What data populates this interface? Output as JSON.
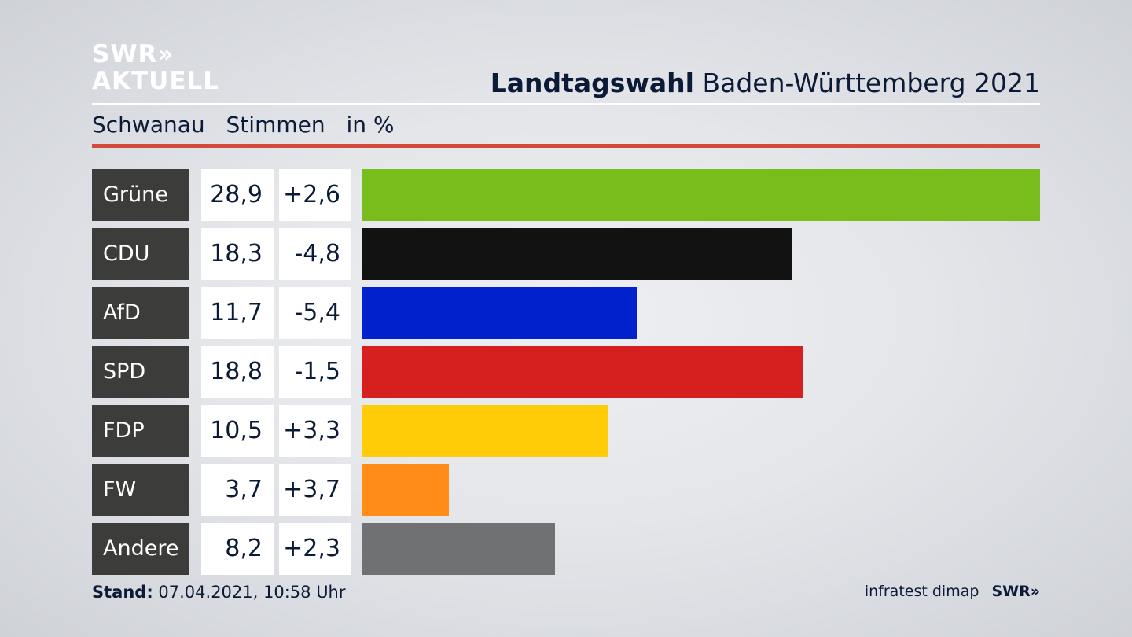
{
  "logo": {
    "line1": "SWR»",
    "line2": "AKTUELL"
  },
  "header": {
    "title_bold": "Landtagswahl",
    "title_rest": "Baden-Württemberg 2021"
  },
  "subheader": {
    "place": "Schwanau",
    "measure": "Stimmen",
    "unit": "in %"
  },
  "chart_data": {
    "type": "bar",
    "orientation": "horizontal",
    "categories": [
      "Grüne",
      "CDU",
      "AfD",
      "SPD",
      "FDP",
      "FW",
      "Andere"
    ],
    "values": [
      28.9,
      18.3,
      11.7,
      18.8,
      10.5,
      3.7,
      8.2
    ],
    "value_labels": [
      "28,9",
      "18,3",
      "11,7",
      "18,8",
      "10,5",
      "3,7",
      "8,2"
    ],
    "diff_labels": [
      "+2,6",
      "-4,8",
      "-5,4",
      "-1,5",
      "+3,3",
      "+3,7",
      "+2,3"
    ],
    "colors": [
      "#79bd1d",
      "#121212",
      "#0021cc",
      "#d62020",
      "#ffcc07",
      "#ff8d17",
      "#707172"
    ],
    "xlim": [
      0,
      28.9
    ]
  },
  "footer": {
    "stand_label": "Stand:",
    "stand_value": "07.04.2021, 10:58 Uhr",
    "source": "infratest dimap",
    "brand": "SWR»"
  }
}
